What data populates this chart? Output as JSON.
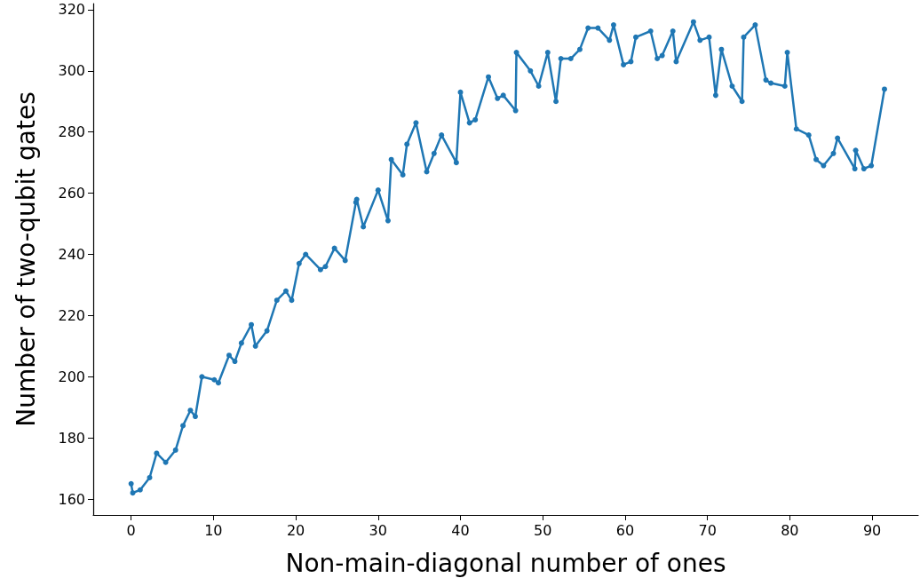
{
  "chart_data": {
    "type": "line",
    "xlabel": "Non-main-diagonal number of ones",
    "ylabel": "Number of two-qubit gates",
    "xlim": [
      -4.6,
      95.6
    ],
    "xticks": [
      0,
      10,
      20,
      30,
      40,
      50,
      60,
      70,
      80,
      90
    ],
    "ylim": [
      154.8,
      322
    ],
    "yticks": [
      160,
      180,
      200,
      220,
      240,
      260,
      280,
      300,
      320
    ],
    "grid": false,
    "marker": "circle",
    "line_style": "solid",
    "series": [
      {
        "color": "#1f77b4",
        "x": [
          0,
          0.2,
          1.1,
          2.25,
          3.1,
          4.2,
          5.4,
          6.3,
          7.2,
          7.8,
          8.6,
          10.1,
          10.6,
          11.9,
          12.6,
          13.4,
          14.6,
          15.1,
          16.5,
          17.7,
          18.8,
          19.5,
          20.4,
          21.2,
          23.0,
          23.6,
          24.7,
          26.0,
          27.3,
          27.4,
          28.2,
          30.0,
          31.2,
          31.6,
          33.0,
          33.5,
          34.6,
          35.9,
          36.8,
          37.7,
          39.5,
          40.0,
          41.1,
          41.8,
          43.4,
          44.5,
          45.2,
          46.7,
          46.8,
          48.5,
          49.5,
          50.6,
          51.6,
          52.2,
          53.4,
          54.5,
          55.5,
          56.7,
          58.1,
          58.6,
          59.8,
          60.7,
          61.3,
          63.1,
          63.9,
          64.5,
          65.8,
          66.2,
          68.3,
          69.1,
          70.2,
          71.0,
          71.7,
          73.0,
          74.2,
          74.4,
          75.8,
          77.1,
          77.7,
          79.4,
          79.7,
          80.8,
          82.3,
          83.2,
          84.1,
          85.3,
          85.8,
          87.9,
          88.0,
          89.0,
          89.9,
          91.5
        ],
        "values": [
          165,
          162,
          163,
          167,
          175,
          172,
          176,
          184,
          189,
          187,
          200,
          199,
          198,
          207,
          205,
          211,
          217,
          210,
          215,
          225,
          228,
          225,
          237,
          240,
          235,
          236,
          242,
          238,
          257,
          258,
          249,
          261,
          251,
          271,
          266,
          276,
          283,
          267,
          273,
          279,
          270,
          293,
          283,
          284,
          298,
          291,
          292,
          287,
          306,
          300,
          295,
          306,
          290,
          304,
          304,
          307,
          314,
          314,
          310,
          315,
          302,
          303,
          311,
          313,
          304,
          305,
          313,
          303,
          316,
          310,
          311,
          292,
          307,
          295,
          290,
          311,
          315,
          297,
          296,
          295,
          306,
          281,
          279,
          271,
          269,
          273,
          278,
          268,
          274,
          268,
          269,
          294
        ]
      }
    ]
  }
}
